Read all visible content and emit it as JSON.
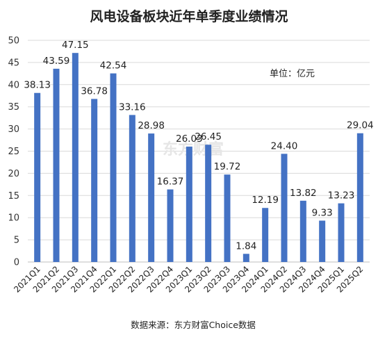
{
  "chart_data": {
    "type": "bar",
    "title": "风电设备板块近年单季度业绩情况",
    "unit_label": "单位：亿元",
    "source": "数据来源：东方财富Choice数据",
    "categories": [
      "2021Q1",
      "2021Q2",
      "2021Q3",
      "2021Q4",
      "2022Q1",
      "2022Q2",
      "2022Q3",
      "2022Q4",
      "2023Q1",
      "2023Q2",
      "2023Q3",
      "2023Q4",
      "2024Q1",
      "2024Q2",
      "2024Q3",
      "2024Q4",
      "2025Q1",
      "2025Q2"
    ],
    "values": [
      38.13,
      43.59,
      47.15,
      36.78,
      42.54,
      33.16,
      28.98,
      16.37,
      26.03,
      26.45,
      19.72,
      1.84,
      12.19,
      24.4,
      13.82,
      9.33,
      13.23,
      29.04
    ],
    "value_labels": [
      "38.13",
      "43.59",
      "47.15",
      "36.78",
      "42.54",
      "33.16",
      "28.98",
      "16.37",
      "26.03",
      "26.45",
      "19.72",
      "1.84",
      "12.19",
      "24.40",
      "13.82",
      "9.33",
      "13.23",
      "29.04"
    ],
    "ylim": [
      0,
      50
    ],
    "yticks": [
      0,
      5,
      10,
      15,
      20,
      25,
      30,
      35,
      40,
      45,
      50
    ],
    "grid": true,
    "bar_color": "#4472C4",
    "watermark": "东方财富"
  }
}
